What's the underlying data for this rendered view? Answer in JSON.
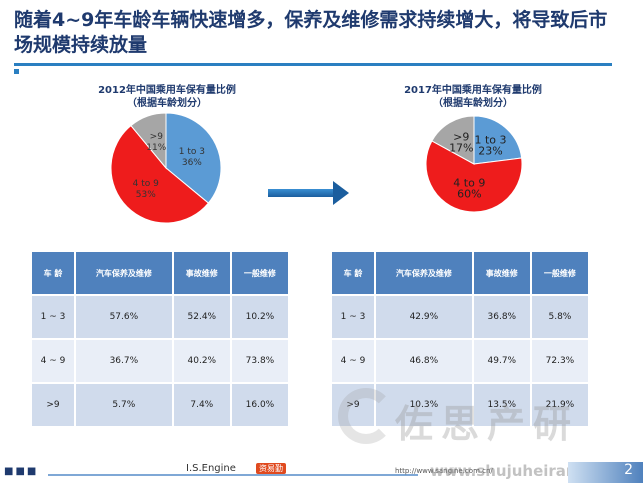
{
  "slide": {
    "title": "随着4~9年车龄车辆快速增多，保养及维修需求持续增大，将导致后市场规模持续放量"
  },
  "chart_data": [
    {
      "type": "pie",
      "title": "2012年中国乘用车保有量比例",
      "subtitle": "（根据车龄划分）",
      "slices": [
        {
          "label": "1 to 3",
          "value": 36,
          "value_label": "36%",
          "color": "#5b9bd5"
        },
        {
          "label": "4 to 9",
          "value": 53,
          "value_label": "53%",
          "color": "#ee1c1c"
        },
        {
          "label": ">9",
          "value": 11,
          "value_label": "11%",
          "color": "#a6a6a6"
        }
      ]
    },
    {
      "type": "pie",
      "title": "2017年中国乘用车保有量比例",
      "subtitle": "（根据车龄划分）",
      "slices": [
        {
          "label": "1 to 3",
          "value": 23,
          "value_label": "23%",
          "color": "#5b9bd5"
        },
        {
          "label": "4 to 9",
          "value": 60,
          "value_label": "60%",
          "color": "#ee1c1c"
        },
        {
          "label": ">9",
          "value": 17,
          "value_label": "17%",
          "color": "#a6a6a6"
        }
      ]
    },
    {
      "type": "table",
      "columns": [
        "车 龄",
        "汽车保养及维修",
        "事故维修",
        "一般维修"
      ],
      "rows": [
        [
          "1 ~ 3",
          "57.6%",
          "52.4%",
          "10.2%"
        ],
        [
          "4 ~ 9",
          "36.7%",
          "40.2%",
          "73.8%"
        ],
        [
          ">9",
          "5.7%",
          "7.4%",
          "16.0%"
        ]
      ]
    },
    {
      "type": "table",
      "columns": [
        "车 龄",
        "汽车保养及维修",
        "事故维修",
        "一般维修"
      ],
      "rows": [
        [
          "1 ~ 3",
          "42.9%",
          "36.8%",
          "5.8%"
        ],
        [
          "4 ~ 9",
          "46.8%",
          "49.7%",
          "72.3%"
        ],
        [
          ">9",
          "10.3%",
          "13.5%",
          "21.9%"
        ]
      ]
    }
  ],
  "footer": {
    "brand": "I.S.Engine",
    "brand_cn": "资易勤",
    "url": "http://www.sangine.com.cn/",
    "page": "2",
    "watermark": "佐思产研",
    "watermark2": "www.shujuheiran"
  }
}
